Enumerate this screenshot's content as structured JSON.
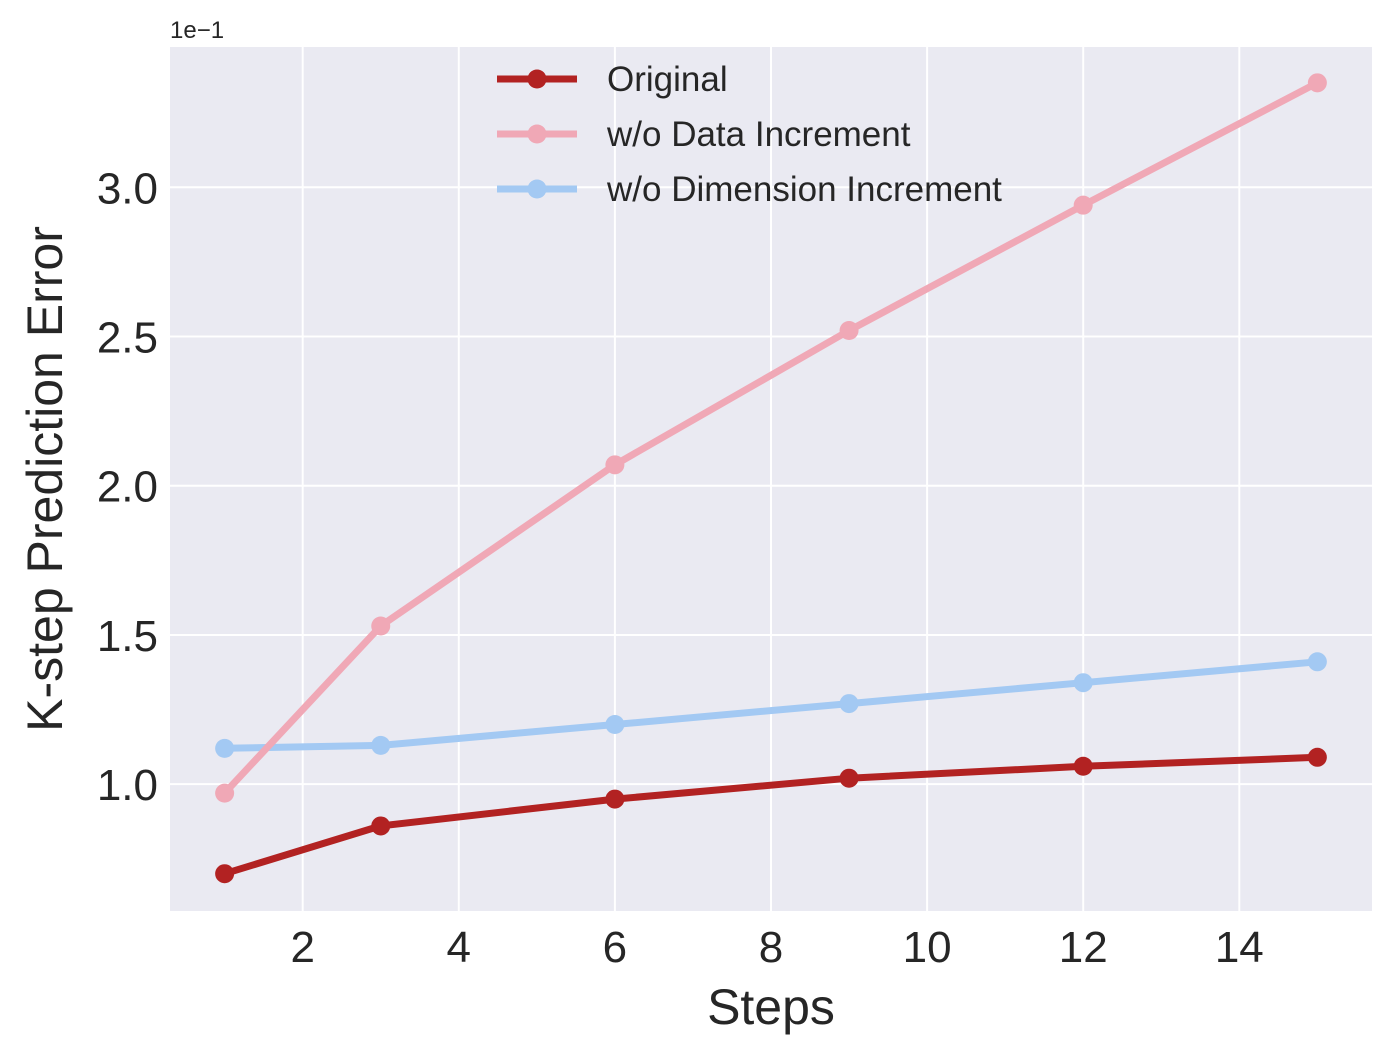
{
  "chart_data": {
    "type": "line",
    "xlabel": "Steps",
    "ylabel": "K-step Prediction Error",
    "y_offset_label": "1e−1",
    "x": [
      1,
      3,
      6,
      9,
      12,
      15
    ],
    "xlim": [
      0.3,
      15.7
    ],
    "ylim": [
      0.575,
      3.47
    ],
    "x_ticks": [
      2,
      4,
      6,
      8,
      10,
      12,
      14
    ],
    "x_tick_labels": [
      "2",
      "4",
      "6",
      "8",
      "10",
      "12",
      "14"
    ],
    "y_ticks": [
      1.0,
      1.5,
      2.0,
      2.5,
      3.0
    ],
    "y_tick_labels": [
      "1.0",
      "1.5",
      "2.0",
      "2.5",
      "3.0"
    ],
    "grid": true,
    "legend_position": "top-center",
    "series": [
      {
        "name": "Original",
        "color": "#b22222",
        "values": [
          0.7,
          0.86,
          0.95,
          1.02,
          1.06,
          1.09
        ]
      },
      {
        "name": "w/o Data Increment",
        "color": "#f0a8b6",
        "values": [
          0.97,
          1.53,
          2.07,
          2.52,
          2.94,
          3.35
        ]
      },
      {
        "name": "w/o Dimension Increment",
        "color": "#a3c9f3",
        "values": [
          1.12,
          1.13,
          1.2,
          1.27,
          1.34,
          1.41
        ]
      }
    ]
  }
}
